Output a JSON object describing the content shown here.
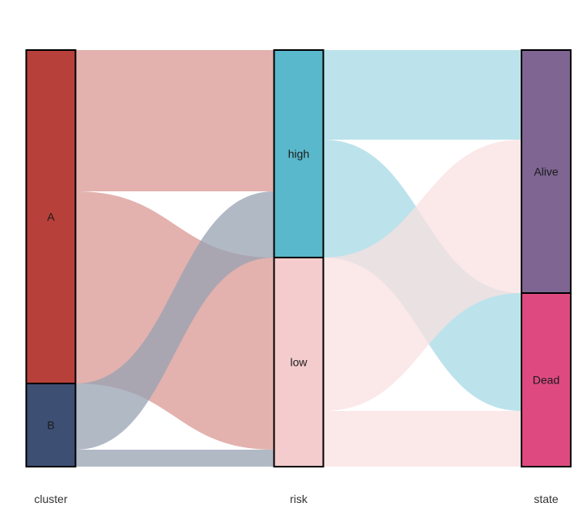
{
  "chart_data": {
    "type": "sankey",
    "axes": [
      "cluster",
      "risk",
      "state"
    ],
    "nodes": [
      {
        "id": "A",
        "axis": "cluster",
        "label": "A",
        "color": "#b8403a"
      },
      {
        "id": "B",
        "axis": "cluster",
        "label": "B",
        "color": "#3e4f74"
      },
      {
        "id": "high",
        "axis": "risk",
        "label": "high",
        "color": "#5ab8cc"
      },
      {
        "id": "low",
        "axis": "risk",
        "label": "low",
        "color": "#f4cccd"
      },
      {
        "id": "Alive",
        "axis": "state",
        "label": "Alive",
        "color": "#7e6592"
      },
      {
        "id": "Dead",
        "axis": "state",
        "label": "Dead",
        "color": "#de4a80"
      }
    ],
    "flows": [
      {
        "source": "A",
        "target": "high",
        "value": 175,
        "color": "#d99893"
      },
      {
        "source": "A",
        "target": "low",
        "value": 238,
        "color": "#d99893"
      },
      {
        "source": "B",
        "target": "high",
        "value": 82,
        "color": "#97a1b2"
      },
      {
        "source": "B",
        "target": "low",
        "value": 21,
        "color": "#97a1b2"
      },
      {
        "source": "high",
        "target": "Alive",
        "value": 111,
        "color": "#a6d9e4"
      },
      {
        "source": "high",
        "target": "Dead",
        "value": 146,
        "color": "#a6d9e4"
      },
      {
        "source": "low",
        "target": "Alive",
        "value": 190,
        "color": "#f9e0e0"
      },
      {
        "source": "low",
        "target": "Dead",
        "value": 69,
        "color": "#f9e0e0"
      }
    ]
  }
}
